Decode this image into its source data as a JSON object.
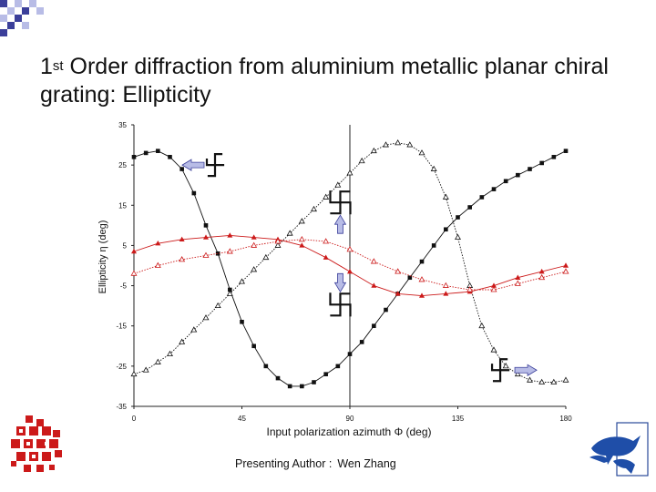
{
  "slide": {
    "title_prefix": "1",
    "title_sup": "st",
    "title_rest": " Order diffraction from aluminium metallic planar chiral grating: Ellipticity",
    "footer_label": "Presenting Author :",
    "footer_name": "Wen Zhang"
  },
  "colors": {
    "accent_blue": "#3b3f9a",
    "accent_light": "#b8bce6",
    "black_series": "#111111",
    "red_series": "#cc1a1a"
  },
  "chart_data": {
    "type": "line",
    "title": "",
    "xlabel": "Input polarization azimuth Φ (deg)",
    "ylabel": "Ellipticity η (deg)",
    "xlim": [
      0,
      180
    ],
    "ylim": [
      -35,
      35
    ],
    "xticks": [
      0,
      45,
      90,
      135,
      180
    ],
    "xtick_labels": [
      "0",
      "45",
      "90",
      "135",
      "180"
    ],
    "yticks": [
      -35,
      -25,
      -15,
      -5,
      5,
      15,
      25,
      35
    ],
    "ytick_labels": [
      "-35",
      "-25",
      "-15",
      "-5",
      "5",
      "15",
      "25",
      "35"
    ],
    "grid": false,
    "vline_x": 90,
    "series": [
      {
        "marker": "square",
        "color": "#111111",
        "x": [
          0,
          5,
          10,
          15,
          20,
          25,
          30,
          35,
          40,
          45,
          50,
          55,
          60,
          65,
          70,
          75,
          80,
          85,
          90,
          95,
          100,
          105,
          110,
          115,
          120,
          125,
          130,
          135,
          140,
          145,
          150,
          155,
          160,
          165,
          170,
          175,
          180
        ],
        "y": [
          27,
          28,
          28.5,
          27,
          24,
          18,
          10,
          3,
          -6,
          -14,
          -20,
          -25,
          -28,
          -30,
          -30,
          -29,
          -27,
          -25,
          -22,
          -19,
          -15,
          -11,
          -7,
          -3,
          1,
          5,
          9,
          12,
          14.5,
          17,
          19,
          21,
          22.5,
          24,
          25.5,
          27,
          28.5
        ]
      },
      {
        "marker": "triangle-open",
        "color": "#111111",
        "x": [
          0,
          5,
          10,
          15,
          20,
          25,
          30,
          35,
          40,
          45,
          50,
          55,
          60,
          65,
          70,
          75,
          80,
          85,
          90,
          95,
          100,
          105,
          110,
          115,
          120,
          125,
          130,
          135,
          140,
          145,
          150,
          155,
          160,
          165,
          170,
          175,
          180
        ],
        "y": [
          -27,
          -26,
          -24,
          -22,
          -19,
          -16,
          -13,
          -10,
          -7,
          -4,
          -1,
          2,
          5,
          8,
          11,
          14,
          17,
          20,
          23,
          26,
          28.5,
          30,
          30.5,
          30,
          28,
          24,
          17,
          7,
          -5,
          -15,
          -21,
          -25,
          -27,
          -28.5,
          -29,
          -29,
          -28.5
        ]
      },
      {
        "marker": "triangle",
        "color": "#cc1a1a",
        "x": [
          0,
          10,
          20,
          30,
          40,
          50,
          60,
          70,
          80,
          90,
          100,
          110,
          120,
          130,
          140,
          150,
          160,
          170,
          180
        ],
        "y": [
          3.5,
          5.5,
          6.5,
          7,
          7.5,
          7,
          6.5,
          5,
          2,
          -1.5,
          -5,
          -7,
          -7.5,
          -7,
          -6.5,
          -5,
          -3,
          -1.5,
          0
        ]
      },
      {
        "marker": "triangle-open",
        "color": "#cc1a1a",
        "x": [
          0,
          10,
          20,
          30,
          40,
          50,
          60,
          70,
          80,
          90,
          100,
          110,
          120,
          130,
          140,
          150,
          160,
          170,
          180
        ],
        "y": [
          -2,
          0,
          1.5,
          2.5,
          3.5,
          5,
          6,
          6.5,
          6,
          4,
          1,
          -1.5,
          -3.5,
          -5,
          -6,
          -6,
          -4.5,
          -3,
          -1.5
        ]
      }
    ],
    "annotations": [
      {
        "kind": "arrow-left",
        "x": 30,
        "y": 25
      },
      {
        "kind": "arrow-up",
        "x": 86,
        "y": 8
      },
      {
        "kind": "arrow-down",
        "x": 86,
        "y": -2
      },
      {
        "kind": "arrow-right",
        "x": 158,
        "y": -26
      }
    ]
  }
}
